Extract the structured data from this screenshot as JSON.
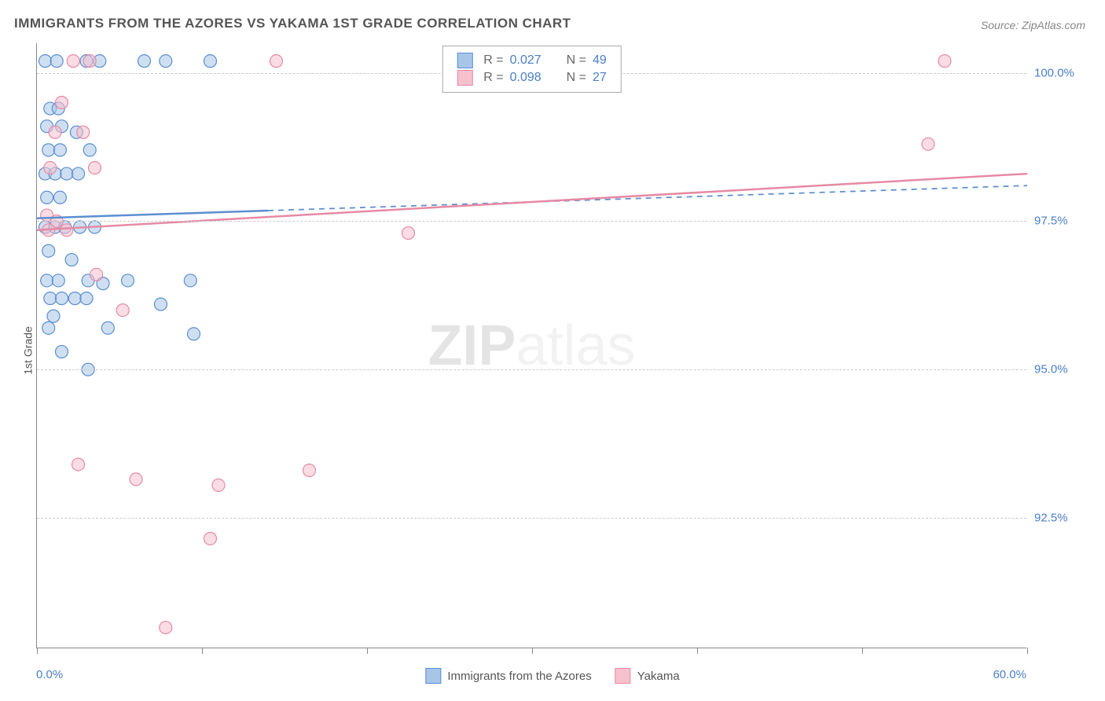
{
  "title": "IMMIGRANTS FROM THE AZORES VS YAKAMA 1ST GRADE CORRELATION CHART",
  "source": "Source: ZipAtlas.com",
  "watermark_bold": "ZIP",
  "watermark_light": "atlas",
  "y_axis_label": "1st Grade",
  "chart": {
    "type": "scatter",
    "xlim": [
      0,
      60
    ],
    "ylim": [
      90.3,
      100.5
    ],
    "x_label_min": "0.0%",
    "x_label_max": "60.0%",
    "x_ticks": [
      0,
      10,
      20,
      30,
      40,
      50,
      60
    ],
    "y_gridlines": [
      92.5,
      95.0,
      97.5,
      100.0
    ],
    "y_tick_labels": [
      "92.5%",
      "95.0%",
      "97.5%",
      "100.0%"
    ],
    "background_color": "#ffffff",
    "grid_color": "#cccccc",
    "series": [
      {
        "name": "Immigrants from the Azores",
        "color_fill": "#a8c5e8",
        "color_stroke": "#5b8fd0",
        "fill_opacity": 0.55,
        "marker_radius": 8,
        "R": "0.027",
        "N": "49",
        "regression": {
          "x1": 0,
          "y1": 97.55,
          "x2": 60,
          "y2": 98.1,
          "solid_until_x": 14,
          "line_width": 2.5
        },
        "points": [
          [
            0.5,
            100.2
          ],
          [
            1.2,
            100.2
          ],
          [
            3.0,
            100.2
          ],
          [
            3.8,
            100.2
          ],
          [
            6.5,
            100.2
          ],
          [
            7.8,
            100.2
          ],
          [
            10.5,
            100.2
          ],
          [
            0.8,
            99.4
          ],
          [
            1.3,
            99.4
          ],
          [
            0.6,
            99.1
          ],
          [
            1.5,
            99.1
          ],
          [
            2.4,
            99.0
          ],
          [
            0.7,
            98.7
          ],
          [
            1.4,
            98.7
          ],
          [
            3.2,
            98.7
          ],
          [
            0.5,
            98.3
          ],
          [
            1.1,
            98.3
          ],
          [
            1.8,
            98.3
          ],
          [
            2.5,
            98.3
          ],
          [
            0.6,
            97.9
          ],
          [
            1.4,
            97.9
          ],
          [
            0.5,
            97.4
          ],
          [
            1.1,
            97.4
          ],
          [
            1.7,
            97.4
          ],
          [
            2.6,
            97.4
          ],
          [
            3.5,
            97.4
          ],
          [
            0.7,
            97.0
          ],
          [
            2.1,
            96.85
          ],
          [
            0.6,
            96.5
          ],
          [
            1.3,
            96.5
          ],
          [
            3.1,
            96.5
          ],
          [
            4.0,
            96.45
          ],
          [
            5.5,
            96.5
          ],
          [
            9.3,
            96.5
          ],
          [
            0.8,
            96.2
          ],
          [
            1.5,
            96.2
          ],
          [
            2.3,
            96.2
          ],
          [
            3.0,
            96.2
          ],
          [
            7.5,
            96.1
          ],
          [
            1.0,
            95.9
          ],
          [
            0.7,
            95.7
          ],
          [
            4.3,
            95.7
          ],
          [
            9.5,
            95.6
          ],
          [
            1.5,
            95.3
          ],
          [
            3.1,
            95.0
          ]
        ]
      },
      {
        "name": "Yakama",
        "color_fill": "#f6c0cd",
        "color_stroke": "#e68aa4",
        "fill_opacity": 0.55,
        "marker_radius": 8,
        "R": "0.098",
        "N": "27",
        "regression": {
          "x1": 0,
          "y1": 97.35,
          "x2": 60,
          "y2": 98.3,
          "solid_until_x": 60,
          "line_width": 2.5
        },
        "points": [
          [
            2.2,
            100.2
          ],
          [
            3.2,
            100.2
          ],
          [
            14.5,
            100.2
          ],
          [
            55.0,
            100.2
          ],
          [
            1.5,
            99.5
          ],
          [
            54.0,
            98.8
          ],
          [
            1.1,
            99.0
          ],
          [
            2.8,
            99.0
          ],
          [
            0.8,
            98.4
          ],
          [
            3.5,
            98.4
          ],
          [
            0.6,
            97.6
          ],
          [
            1.2,
            97.5
          ],
          [
            0.7,
            97.35
          ],
          [
            1.8,
            97.35
          ],
          [
            22.5,
            97.3
          ],
          [
            3.6,
            96.6
          ],
          [
            5.2,
            96.0
          ],
          [
            2.5,
            93.4
          ],
          [
            16.5,
            93.3
          ],
          [
            6.0,
            93.15
          ],
          [
            11.0,
            93.05
          ],
          [
            10.5,
            92.15
          ],
          [
            7.8,
            90.65
          ]
        ]
      }
    ]
  },
  "legend_top": {
    "rows": [
      {
        "swatch_fill": "#a8c5e8",
        "swatch_stroke": "#5b8fd0",
        "R": "0.027",
        "N": "49"
      },
      {
        "swatch_fill": "#f6c0cd",
        "swatch_stroke": "#e68aa4",
        "R": "0.098",
        "N": "27"
      }
    ],
    "r_label": "R =",
    "n_label": "N ="
  },
  "legend_bottom": {
    "items": [
      {
        "swatch_fill": "#a8c5e8",
        "swatch_stroke": "#5b8fd0",
        "label": "Immigrants from the Azores"
      },
      {
        "swatch_fill": "#f6c0cd",
        "swatch_stroke": "#e68aa4",
        "label": "Yakama"
      }
    ]
  }
}
